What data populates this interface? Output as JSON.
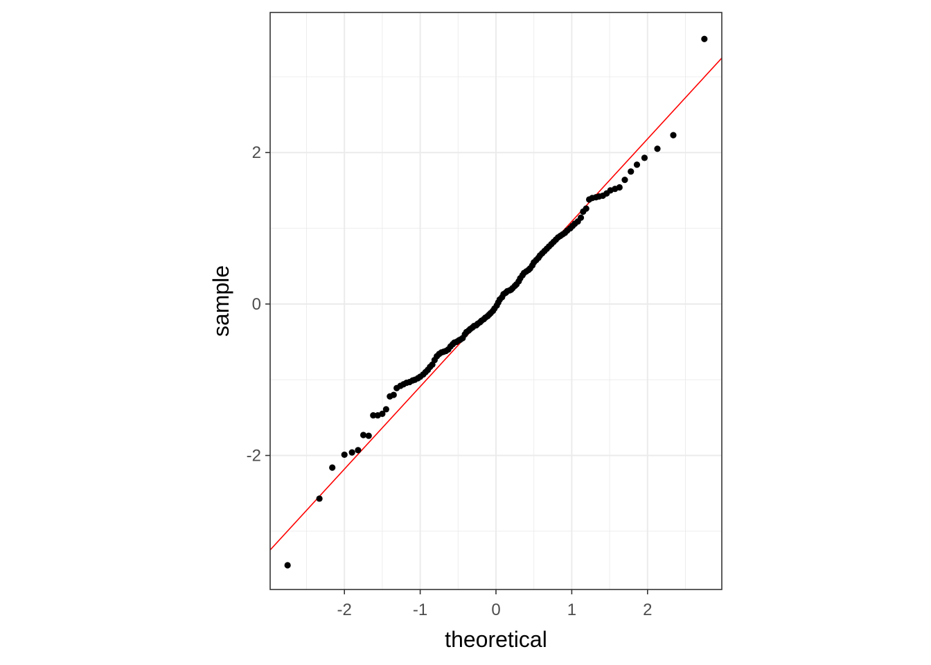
{
  "chart_data": {
    "type": "scatter",
    "title": "",
    "xlabel": "theoretical",
    "ylabel": "sample",
    "xlim": [
      -2.98,
      2.98
    ],
    "ylim": [
      -3.77,
      3.85
    ],
    "x_ticks": [
      -2,
      -1,
      0,
      1,
      2
    ],
    "y_ticks": [
      -2,
      0,
      2
    ],
    "x_tick_labels": [
      "-2",
      "-1",
      "0",
      "1",
      "2"
    ],
    "y_tick_labels": [
      "-2",
      "0",
      "2"
    ],
    "grid": true,
    "legend": "none",
    "colors": {
      "points": "#000000",
      "reference_line": "#ff0000",
      "grid": "#ebebeb",
      "panel_border": "#333333"
    },
    "reference_line": {
      "intercept": 0.0,
      "slope": 1.09
    },
    "points": [
      [
        -2.75,
        -3.45
      ],
      [
        -2.33,
        -2.57
      ],
      [
        -2.16,
        -2.16
      ],
      [
        -2.0,
        -1.99
      ],
      [
        -1.9,
        -1.96
      ],
      [
        -1.82,
        -1.93
      ],
      [
        -1.75,
        -1.73
      ],
      [
        -1.68,
        -1.74
      ],
      [
        -1.62,
        -1.47
      ],
      [
        -1.56,
        -1.47
      ],
      [
        -1.5,
        -1.45
      ],
      [
        -1.45,
        -1.39
      ],
      [
        -1.4,
        -1.22
      ],
      [
        -1.35,
        -1.2
      ],
      [
        -1.31,
        -1.11
      ],
      [
        -1.26,
        -1.08
      ],
      [
        -1.22,
        -1.06
      ],
      [
        -1.18,
        -1.04
      ],
      [
        -1.14,
        -1.03
      ],
      [
        -1.1,
        -1.01
      ],
      [
        -1.07,
        -1.0
      ],
      [
        -1.03,
        -0.98
      ],
      [
        -1.0,
        -0.96
      ],
      [
        -0.96,
        -0.93
      ],
      [
        -0.93,
        -0.9
      ],
      [
        -0.9,
        -0.87
      ],
      [
        -0.87,
        -0.83
      ],
      [
        -0.84,
        -0.8
      ],
      [
        -0.81,
        -0.74
      ],
      [
        -0.78,
        -0.69
      ],
      [
        -0.75,
        -0.66
      ],
      [
        -0.72,
        -0.64
      ],
      [
        -0.69,
        -0.63
      ],
      [
        -0.66,
        -0.62
      ],
      [
        -0.63,
        -0.6
      ],
      [
        -0.6,
        -0.56
      ],
      [
        -0.57,
        -0.53
      ],
      [
        -0.55,
        -0.51
      ],
      [
        -0.52,
        -0.5
      ],
      [
        -0.49,
        -0.48
      ],
      [
        -0.47,
        -0.47
      ],
      [
        -0.44,
        -0.45
      ],
      [
        -0.41,
        -0.4
      ],
      [
        -0.39,
        -0.37
      ],
      [
        -0.36,
        -0.35
      ],
      [
        -0.34,
        -0.33
      ],
      [
        -0.31,
        -0.31
      ],
      [
        -0.29,
        -0.29
      ],
      [
        -0.26,
        -0.28
      ],
      [
        -0.24,
        -0.26
      ],
      [
        -0.21,
        -0.24
      ],
      [
        -0.19,
        -0.22
      ],
      [
        -0.16,
        -0.2
      ],
      [
        -0.14,
        -0.18
      ],
      [
        -0.11,
        -0.16
      ],
      [
        -0.09,
        -0.14
      ],
      [
        -0.07,
        -0.12
      ],
      [
        -0.04,
        -0.09
      ],
      [
        -0.02,
        -0.06
      ],
      [
        0.01,
        -0.02
      ],
      [
        0.03,
        0.02
      ],
      [
        0.05,
        0.06
      ],
      [
        0.08,
        0.09
      ],
      [
        0.1,
        0.13
      ],
      [
        0.13,
        0.15
      ],
      [
        0.15,
        0.17
      ],
      [
        0.18,
        0.18
      ],
      [
        0.2,
        0.19
      ],
      [
        0.22,
        0.21
      ],
      [
        0.25,
        0.24
      ],
      [
        0.27,
        0.26
      ],
      [
        0.3,
        0.3
      ],
      [
        0.32,
        0.34
      ],
      [
        0.35,
        0.38
      ],
      [
        0.37,
        0.41
      ],
      [
        0.4,
        0.43
      ],
      [
        0.43,
        0.45
      ],
      [
        0.45,
        0.47
      ],
      [
        0.48,
        0.51
      ],
      [
        0.5,
        0.55
      ],
      [
        0.53,
        0.58
      ],
      [
        0.56,
        0.61
      ],
      [
        0.58,
        0.64
      ],
      [
        0.61,
        0.67
      ],
      [
        0.64,
        0.7
      ],
      [
        0.67,
        0.73
      ],
      [
        0.7,
        0.76
      ],
      [
        0.73,
        0.79
      ],
      [
        0.76,
        0.82
      ],
      [
        0.79,
        0.85
      ],
      [
        0.82,
        0.88
      ],
      [
        0.85,
        0.9
      ],
      [
        0.88,
        0.92
      ],
      [
        0.91,
        0.94
      ],
      [
        0.94,
        0.97
      ],
      [
        0.98,
        1.0
      ],
      [
        1.01,
        1.03
      ],
      [
        1.04,
        1.06
      ],
      [
        1.08,
        1.09
      ],
      [
        1.12,
        1.14
      ],
      [
        1.15,
        1.22
      ],
      [
        1.19,
        1.26
      ],
      [
        1.23,
        1.38
      ],
      [
        1.27,
        1.4
      ],
      [
        1.32,
        1.41
      ],
      [
        1.36,
        1.42
      ],
      [
        1.41,
        1.43
      ],
      [
        1.46,
        1.46
      ],
      [
        1.51,
        1.5
      ],
      [
        1.57,
        1.52
      ],
      [
        1.63,
        1.54
      ],
      [
        1.7,
        1.64
      ],
      [
        1.78,
        1.75
      ],
      [
        1.86,
        1.84
      ],
      [
        1.96,
        1.93
      ],
      [
        2.13,
        2.05
      ],
      [
        2.34,
        2.23
      ],
      [
        2.75,
        3.5
      ]
    ]
  }
}
